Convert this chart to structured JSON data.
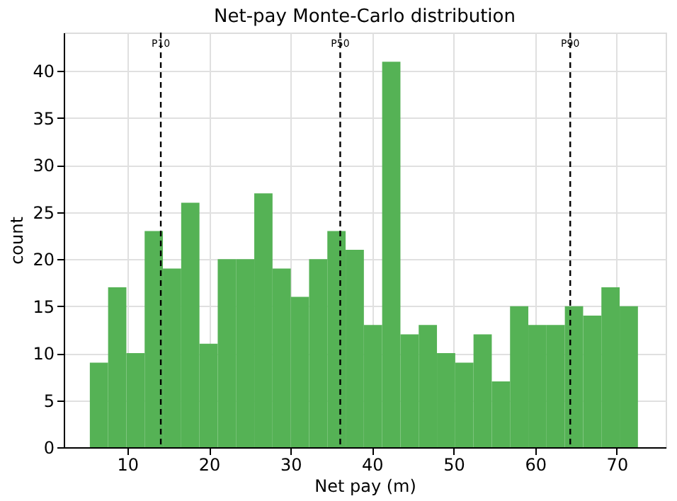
{
  "chart_data": {
    "type": "histogram",
    "title": "Net-pay Monte-Carlo distribution",
    "xlabel": "Net pay (m)",
    "ylabel": "count",
    "bins": [
      5.4,
      7.64,
      9.88,
      12.12,
      14.36,
      16.6,
      18.84,
      21.08,
      23.32,
      25.56,
      27.8,
      30.04,
      32.28,
      34.52,
      36.76,
      39.0,
      41.24,
      43.48,
      45.72,
      47.96,
      50.2,
      52.44,
      54.68,
      56.92,
      59.16,
      61.4,
      63.64,
      65.88,
      68.12,
      70.36,
      72.6
    ],
    "values": [
      9,
      17,
      10,
      23,
      19,
      26,
      11,
      20,
      20,
      27,
      19,
      16,
      20,
      23,
      21,
      13,
      41,
      12,
      13,
      10,
      9,
      12,
      7,
      15,
      13,
      13,
      15,
      14,
      17,
      15
    ],
    "color": "#55b255",
    "xlim": [
      2.2,
      76.0
    ],
    "xticks": [
      10,
      20,
      30,
      40,
      50,
      60,
      70
    ],
    "ylim": [
      0,
      44.1
    ],
    "yticks": [
      0,
      5,
      10,
      15,
      20,
      25,
      30,
      35,
      40
    ],
    "grid": true,
    "ref_lines": [
      {
        "axis": "x",
        "value": 14.1,
        "label": "P10",
        "color": "#000000",
        "line_style": "dashed"
      },
      {
        "axis": "x",
        "value": 36.1,
        "label": "P50",
        "color": "#000000",
        "line_style": "dashed"
      },
      {
        "axis": "x",
        "value": 64.3,
        "label": "P90",
        "color": "#000000",
        "line_style": "dashed"
      }
    ]
  }
}
